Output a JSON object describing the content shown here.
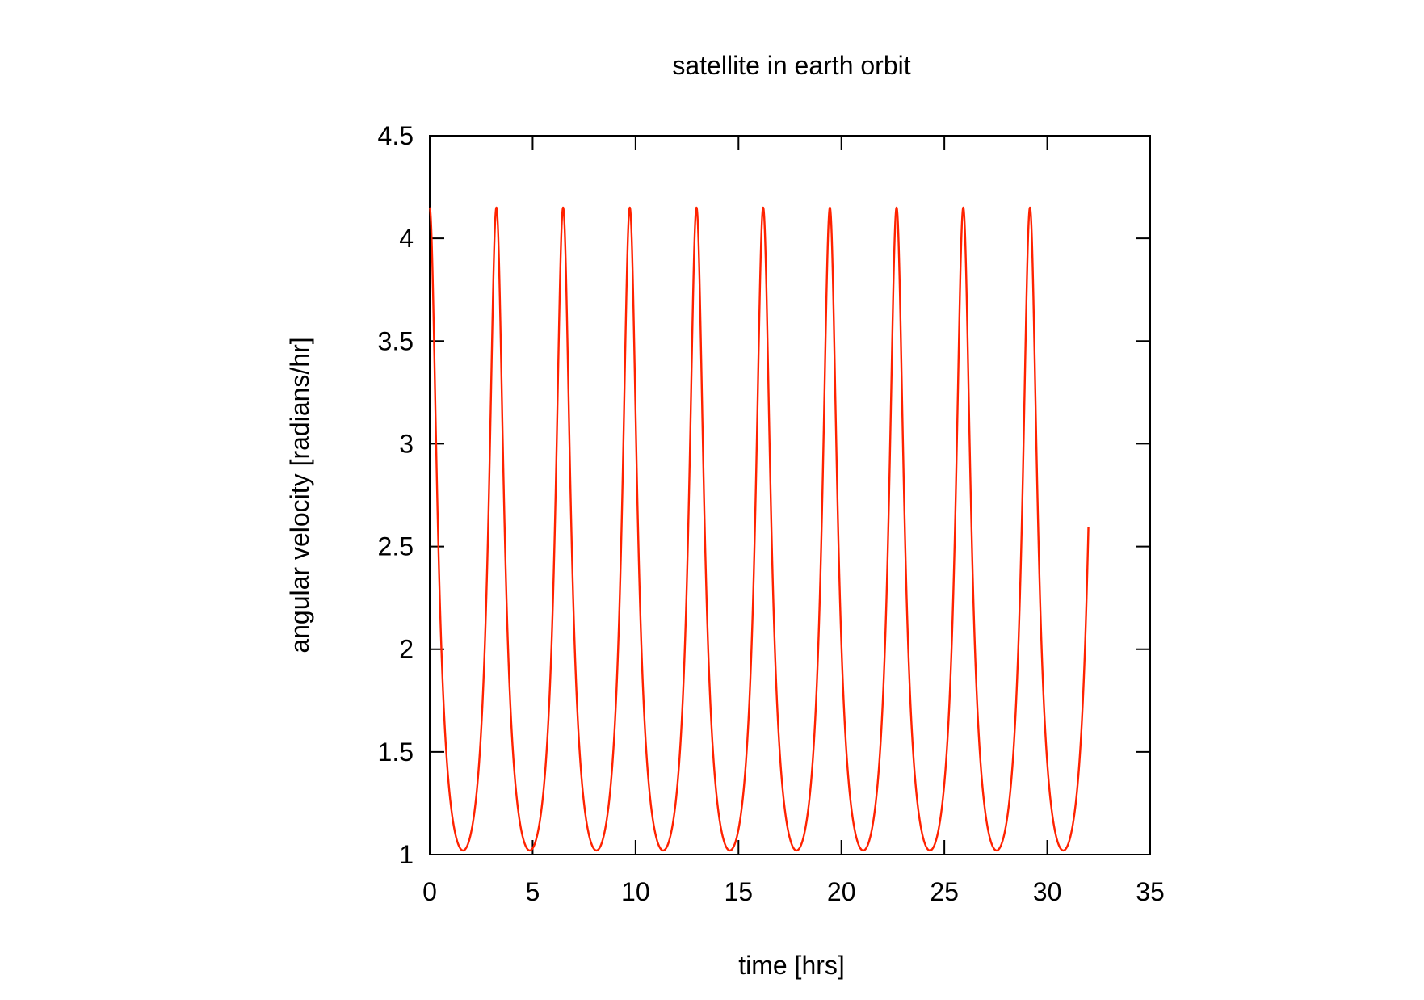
{
  "chart_data": {
    "type": "line",
    "title": "satellite in earth orbit",
    "xlabel": "time [hrs]",
    "ylabel": "angular velocity [radians/hr]",
    "xlim": [
      0,
      35
    ],
    "ylim": [
      1,
      4.5
    ],
    "x_ticks": [
      "0",
      "5",
      "10",
      "15",
      "20",
      "25",
      "30",
      "35"
    ],
    "y_ticks": [
      "1",
      "1.5",
      "2",
      "2.5",
      "3",
      "3.5",
      "4",
      "4.5"
    ],
    "grid": false,
    "legend": "none",
    "series": [
      {
        "color": "#ff2200",
        "x_end": 32.0,
        "period_hrs": 3.24,
        "peak_times": [
          0,
          3.24,
          6.48,
          9.72,
          12.96,
          16.2,
          19.44,
          22.68,
          25.92,
          29.16
        ],
        "trough_times": [
          1.62,
          4.86,
          8.1,
          11.34,
          14.58,
          17.82,
          21.06,
          24.3,
          27.54,
          30.78
        ],
        "max": 4.15,
        "min": 1.02,
        "end_value": 2.28
      }
    ]
  }
}
